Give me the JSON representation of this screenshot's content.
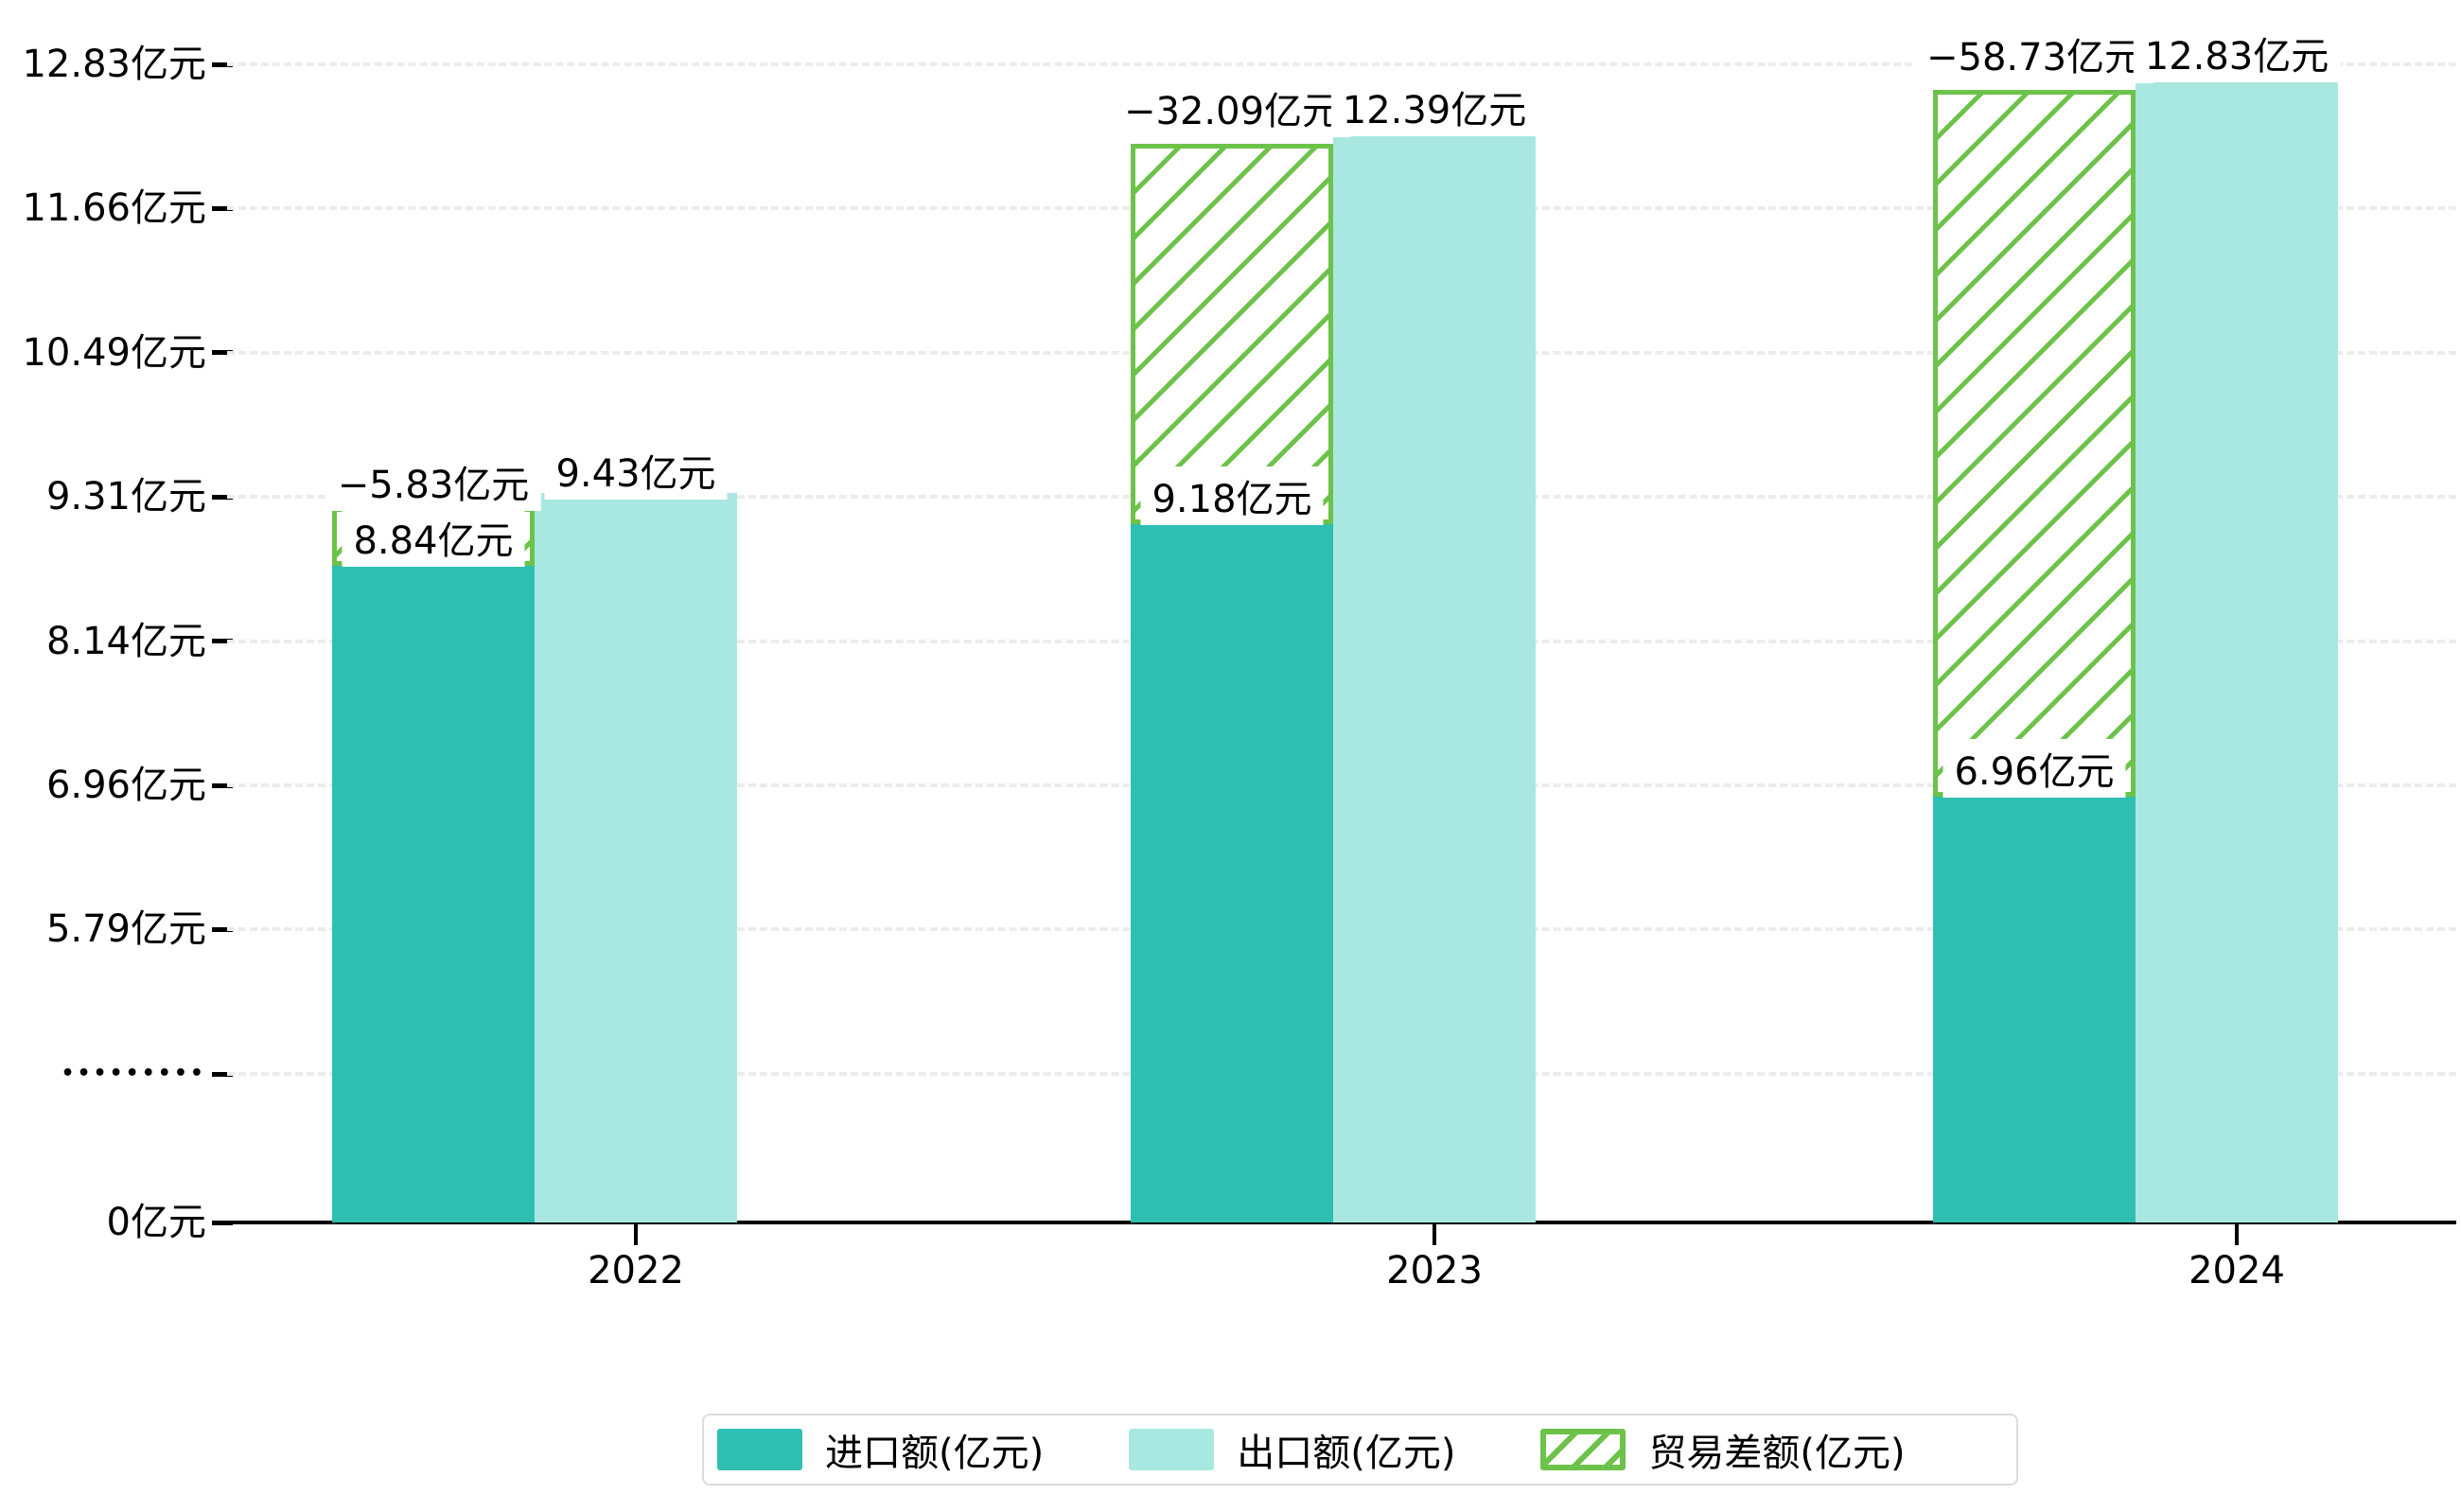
{
  "chart_data": {
    "type": "bar",
    "categories": [
      "2022",
      "2023",
      "2024"
    ],
    "series": [
      {
        "name": "进口额(亿元)",
        "values": [
          8.84,
          9.18,
          6.96
        ],
        "labels": [
          "8.84亿元",
          "9.18亿元",
          "6.96亿元"
        ],
        "color": "#2FBFB2",
        "style": "solid"
      },
      {
        "name": "出口额(亿元)",
        "values": [
          9.43,
          12.39,
          12.83
        ],
        "labels": [
          "9.43亿元",
          "12.39亿元",
          "12.83亿元"
        ],
        "color": "#A9E8E1",
        "style": "solid"
      },
      {
        "name": "贸易差额(亿元)",
        "values": [
          -5.83,
          -32.09,
          -58.73
        ],
        "labels": [
          "−5.83亿元",
          "−32.09亿元",
          "−58.73亿元"
        ],
        "color": "#6DC24A",
        "style": "hatched"
      }
    ],
    "y_ticks": [
      "12.83亿元",
      "11.66亿元",
      "10.49亿元",
      "9.31亿元",
      "8.14亿元",
      "6.96亿元",
      "5.79亿元",
      "•••••••••",
      "0亿元"
    ],
    "axis_break": true,
    "grid": "dashed-horizontal",
    "legend_position": "bottom",
    "xlabel": "",
    "ylabel": "",
    "ylim_visible": [
      0,
      12.83
    ]
  },
  "legend": {
    "items": [
      {
        "label": "进口额(亿元)"
      },
      {
        "label": "出口额(亿元)"
      },
      {
        "label": "贸易差额(亿元)"
      }
    ]
  },
  "colors": {
    "import": "#2FBFB2",
    "export": "#A9E8E1",
    "diff_green": "#6DC24A",
    "gridline": "#ececec",
    "axis": "#000000"
  }
}
